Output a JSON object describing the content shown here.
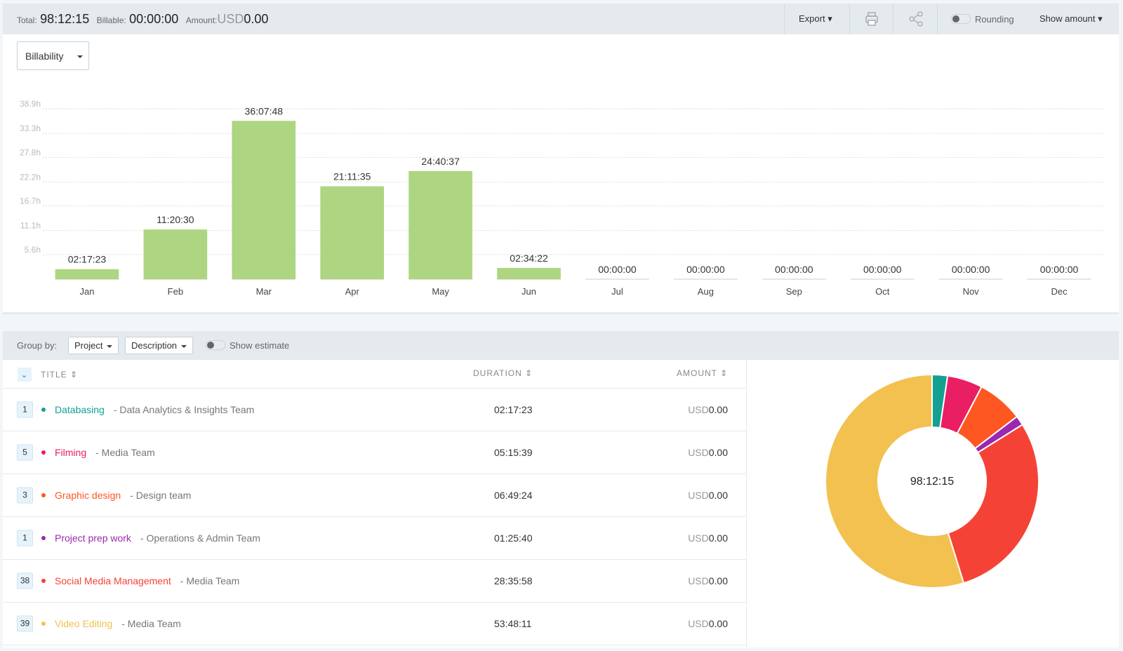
{
  "toolbar": {
    "total_label": "Total:",
    "total": "98:12:15",
    "billable_label": "Billable:",
    "billable": "00:00:00",
    "amount_label": "Amount:",
    "amount_currency": "USD",
    "amount": "0.00",
    "export": "Export",
    "rounding": "Rounding",
    "show_amount": "Show amount"
  },
  "filter": "Billability",
  "chart_data": [
    {
      "type": "bar",
      "categories": [
        "Jan",
        "Feb",
        "Mar",
        "Apr",
        "May",
        "Jun",
        "Jul",
        "Aug",
        "Sep",
        "Oct",
        "Nov",
        "Dec"
      ],
      "values": [
        2.2897,
        11.3417,
        36.13,
        21.1931,
        24.6769,
        2.5728,
        0,
        0,
        0,
        0,
        0,
        0
      ],
      "value_labels": [
        "02:17:23",
        "11:20:30",
        "36:07:48",
        "21:11:35",
        "24:40:37",
        "02:34:22",
        "00:00:00",
        "00:00:00",
        "00:00:00",
        "00:00:00",
        "00:00:00",
        "00:00:00"
      ],
      "color": "#aed581",
      "ylim": [
        0,
        38.9
      ],
      "yticks": [
        {
          "value": 5.6,
          "label": "5.6h"
        },
        {
          "value": 11.1,
          "label": "11.1h"
        },
        {
          "value": 16.7,
          "label": "16.7h"
        },
        {
          "value": 22.2,
          "label": "22.2h"
        },
        {
          "value": 27.8,
          "label": "27.8h"
        },
        {
          "value": 33.3,
          "label": "33.3h"
        },
        {
          "value": 38.9,
          "label": "38.9h"
        }
      ],
      "grid": true
    },
    {
      "type": "donut",
      "values": [
        2.2897,
        5.2608,
        6.8233,
        1.4278,
        28.5994,
        53.8031
      ],
      "colors": [
        "#14a091",
        "#e91e63",
        "#ff5722",
        "#9c27b0",
        "#f44336",
        "#f2c150"
      ],
      "center_label": "98:12:15"
    }
  ],
  "grouping": {
    "label": "Group by:",
    "group1": "Project",
    "group2": "Description",
    "show_estimate": "Show estimate"
  },
  "table": {
    "columns": [
      "TITLE",
      "DURATION",
      "AMOUNT"
    ],
    "rows": [
      {
        "count": 1,
        "name": "Databasing",
        "team": "- Data Analytics & Insights Team",
        "duration": "02:17:23",
        "currency": "USD",
        "amount": "0.00",
        "color": "#14a091"
      },
      {
        "count": 5,
        "name": "Filming",
        "team": "- Media Team",
        "duration": "05:15:39",
        "currency": "USD",
        "amount": "0.00",
        "color": "#e91e63"
      },
      {
        "count": 3,
        "name": "Graphic design",
        "team": "- Design team",
        "duration": "06:49:24",
        "currency": "USD",
        "amount": "0.00",
        "color": "#ff5722"
      },
      {
        "count": 1,
        "name": "Project prep work",
        "team": "- Operations & Admin Team",
        "duration": "01:25:40",
        "currency": "USD",
        "amount": "0.00",
        "color": "#9c27b0"
      },
      {
        "count": 38,
        "name": "Social Media Management",
        "team": "- Media Team",
        "duration": "28:35:58",
        "currency": "USD",
        "amount": "0.00",
        "color": "#f44336"
      },
      {
        "count": 39,
        "name": "Video Editing",
        "team": "- Media Team",
        "duration": "53:48:11",
        "currency": "USD",
        "amount": "0.00",
        "color": "#f2c150"
      }
    ]
  }
}
